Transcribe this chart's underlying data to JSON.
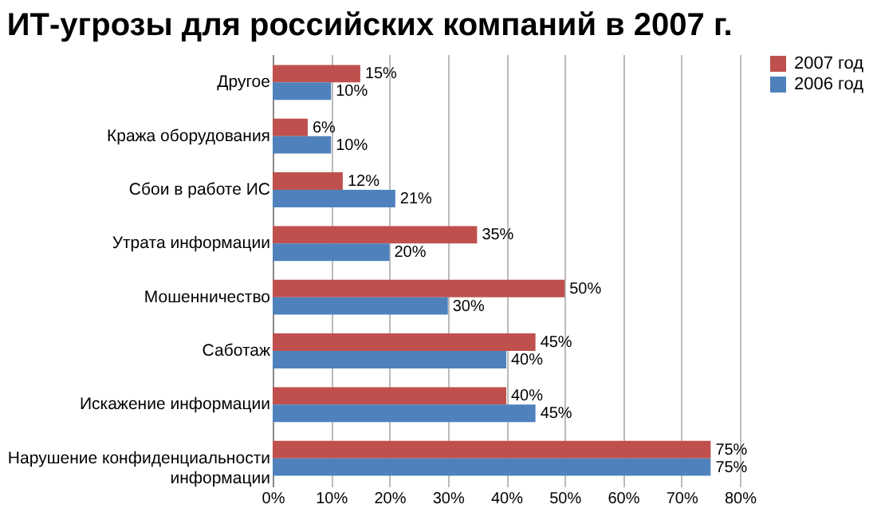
{
  "chart_data": {
    "type": "bar",
    "orientation": "horizontal",
    "title": "ИТ-угрозы для российских компаний в 2007 г.",
    "categories": [
      "Другое",
      "Кража оборудования",
      "Сбои в работе ИС",
      "Утрата информации",
      "Мошенничество",
      "Саботаж",
      "Искажение информации",
      "Нарушение конфиденциальности информации"
    ],
    "series": [
      {
        "name": "2007 год",
        "color": "#c0504d",
        "values": [
          15,
          6,
          12,
          35,
          50,
          45,
          40,
          75
        ],
        "value_labels": [
          "15%",
          "6%",
          "12%",
          "35%",
          "50%",
          "45%",
          "40%",
          "75%"
        ]
      },
      {
        "name": "2006 год",
        "color": "#4f81bd",
        "values": [
          10,
          10,
          21,
          20,
          30,
          40,
          45,
          75
        ],
        "value_labels": [
          "10%",
          "10%",
          "21%",
          "20%",
          "30%",
          "40%",
          "45%",
          "75%"
        ]
      }
    ],
    "xlim": [
      0,
      80
    ],
    "xticks": [
      {
        "value": 0,
        "label": "0%"
      },
      {
        "value": 10,
        "label": "10%"
      },
      {
        "value": 20,
        "label": "20%"
      },
      {
        "value": 30,
        "label": "30%"
      },
      {
        "value": 40,
        "label": "40%"
      },
      {
        "value": 50,
        "label": "50%"
      },
      {
        "value": 60,
        "label": "60%"
      },
      {
        "value": 70,
        "label": "70%"
      },
      {
        "value": 80,
        "label": "80%"
      }
    ],
    "grid": "x",
    "legend": "right"
  }
}
